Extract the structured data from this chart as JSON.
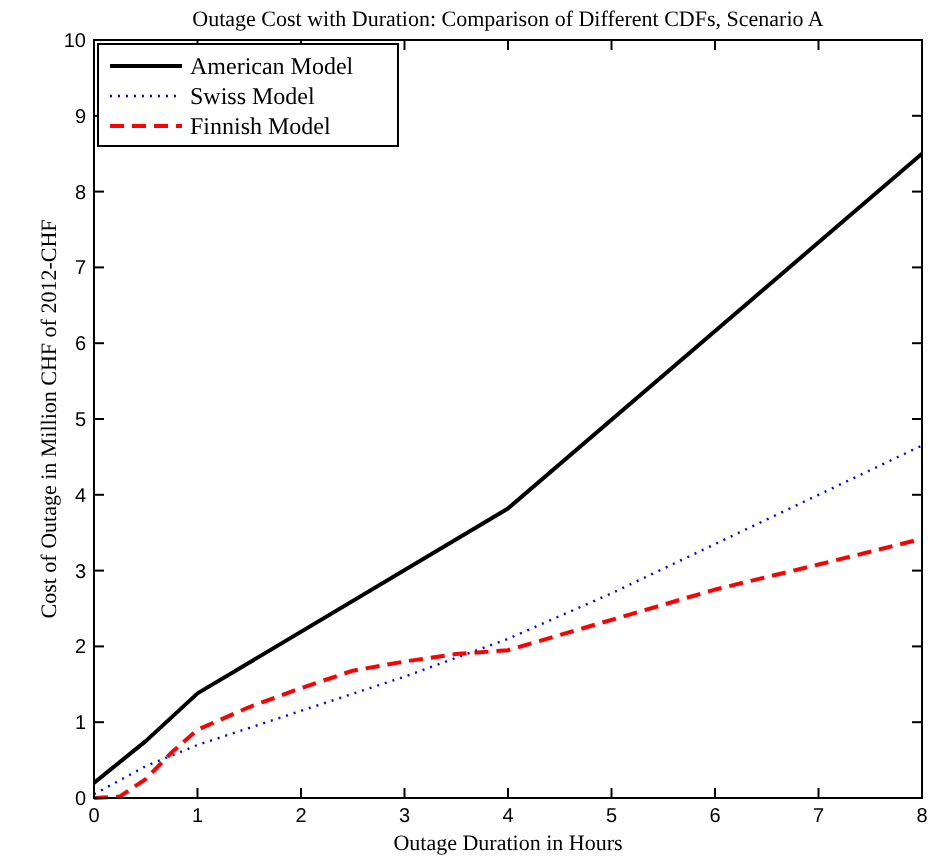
{
  "chart_data": {
    "type": "line",
    "title": "Outage Cost with Duration: Comparison of Different CDFs, Scenario A",
    "xlabel": "Outage Duration in Hours",
    "ylabel": "Cost of Outage in Million CHF of 2012-CHF",
    "xlim": [
      0,
      8
    ],
    "ylim": [
      0,
      10
    ],
    "xticks": [
      0,
      1,
      2,
      3,
      4,
      5,
      6,
      7,
      8
    ],
    "yticks": [
      0,
      1,
      2,
      3,
      4,
      5,
      6,
      7,
      8,
      9,
      10
    ],
    "grid": false,
    "legend": "top left",
    "series": [
      {
        "name": "American Model",
        "color": "#000000",
        "line_style": "solid",
        "x": [
          0,
          0.5,
          1,
          4,
          8
        ],
        "values": [
          0.2,
          0.75,
          1.38,
          3.82,
          8.5
        ]
      },
      {
        "name": "Swiss Model",
        "color": "#0000ff",
        "line_style": "dotted",
        "x": [
          0,
          0.5,
          1,
          2,
          3,
          4,
          5,
          6,
          7,
          8
        ],
        "values": [
          0.05,
          0.42,
          0.7,
          1.15,
          1.6,
          2.1,
          2.7,
          3.35,
          4.0,
          4.65
        ]
      },
      {
        "name": "Finnish Model",
        "color": "#ff0000",
        "line_style": "dashed",
        "x": [
          0,
          0.25,
          0.5,
          0.75,
          1,
          1.5,
          2,
          2.5,
          3,
          3.5,
          4,
          5,
          6,
          7,
          8
        ],
        "values": [
          0,
          0.02,
          0.25,
          0.6,
          0.9,
          1.2,
          1.45,
          1.68,
          1.8,
          1.9,
          1.95,
          2.35,
          2.75,
          3.08,
          3.42
        ]
      }
    ]
  }
}
